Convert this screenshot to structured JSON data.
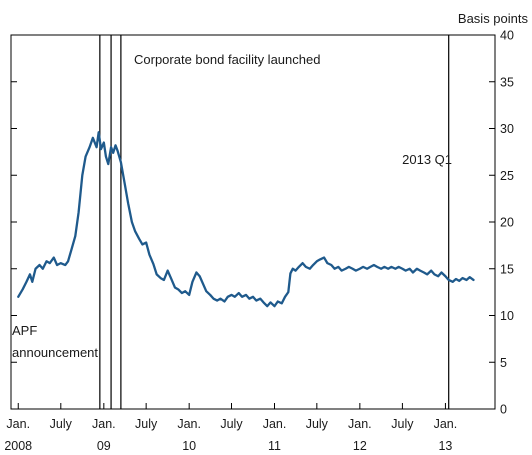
{
  "chart_data": {
    "type": "line",
    "unit_label": "Basis points",
    "ylim": [
      0,
      40
    ],
    "yticks": [
      0,
      5,
      10,
      15,
      20,
      25,
      30,
      35,
      40
    ],
    "xlim": [
      "2007-12-01",
      "2013-08-01"
    ],
    "x_ticks": [
      {
        "label": "Jan.",
        "date": "2008-01-01",
        "year": "2008"
      },
      {
        "label": "July",
        "date": "2008-07-01",
        "year": ""
      },
      {
        "label": "Jan.",
        "date": "2009-01-01",
        "year": "09"
      },
      {
        "label": "July",
        "date": "2009-07-01",
        "year": ""
      },
      {
        "label": "Jan.",
        "date": "2010-01-01",
        "year": "10"
      },
      {
        "label": "July",
        "date": "2010-07-01",
        "year": ""
      },
      {
        "label": "Jan.",
        "date": "2011-01-01",
        "year": "11"
      },
      {
        "label": "July",
        "date": "2011-07-01",
        "year": ""
      },
      {
        "label": "Jan.",
        "date": "2012-01-01",
        "year": "12"
      },
      {
        "label": "July",
        "date": "2012-07-01",
        "year": ""
      },
      {
        "label": "Jan.",
        "date": "2013-01-01",
        "year": "13"
      }
    ],
    "grid": false,
    "line_color": "#1f5a8c",
    "vlines": [
      {
        "date": "2008-12-15"
      },
      {
        "date": "2009-02-01"
      },
      {
        "date": "2009-03-15"
      },
      {
        "date": "2013-01-15"
      }
    ],
    "annotations": [
      {
        "id": "apf",
        "lines": [
          "APF",
          "announcement"
        ]
      },
      {
        "id": "cbf",
        "lines": [
          "Corporate bond facility launched"
        ]
      },
      {
        "id": "q1",
        "lines": [
          "2013 Q1"
        ]
      }
    ],
    "series": [
      {
        "values": [
          [
            "2008-01-01",
            12.0
          ],
          [
            "2008-01-20",
            12.8
          ],
          [
            "2008-02-05",
            13.6
          ],
          [
            "2008-02-20",
            14.4
          ],
          [
            "2008-03-01",
            13.6
          ],
          [
            "2008-03-15",
            15.0
          ],
          [
            "2008-04-01",
            15.4
          ],
          [
            "2008-04-15",
            15.0
          ],
          [
            "2008-05-01",
            15.8
          ],
          [
            "2008-05-15",
            15.6
          ],
          [
            "2008-06-01",
            16.2
          ],
          [
            "2008-06-15",
            15.4
          ],
          [
            "2008-07-01",
            15.6
          ],
          [
            "2008-07-20",
            15.4
          ],
          [
            "2008-08-01",
            15.8
          ],
          [
            "2008-08-15",
            17.0
          ],
          [
            "2008-09-01",
            18.5
          ],
          [
            "2008-09-15",
            21.0
          ],
          [
            "2008-10-01",
            25.0
          ],
          [
            "2008-10-15",
            27.0
          ],
          [
            "2008-11-01",
            28.0
          ],
          [
            "2008-11-15",
            29.0
          ],
          [
            "2008-12-01",
            28.0
          ],
          [
            "2008-12-10",
            29.6
          ],
          [
            "2008-12-20",
            27.8
          ],
          [
            "2009-01-01",
            28.5
          ],
          [
            "2009-01-10",
            27.0
          ],
          [
            "2009-01-20",
            26.2
          ],
          [
            "2009-02-01",
            28.0
          ],
          [
            "2009-02-10",
            27.4
          ],
          [
            "2009-02-20",
            28.2
          ],
          [
            "2009-03-01",
            27.6
          ],
          [
            "2009-03-15",
            26.4
          ],
          [
            "2009-04-01",
            24.0
          ],
          [
            "2009-04-15",
            22.0
          ],
          [
            "2009-05-01",
            20.0
          ],
          [
            "2009-05-15",
            19.0
          ],
          [
            "2009-06-01",
            18.2
          ],
          [
            "2009-06-15",
            17.6
          ],
          [
            "2009-07-01",
            17.8
          ],
          [
            "2009-07-15",
            16.5
          ],
          [
            "2009-08-01",
            15.5
          ],
          [
            "2009-08-15",
            14.4
          ],
          [
            "2009-09-01",
            14.0
          ],
          [
            "2009-09-15",
            13.8
          ],
          [
            "2009-10-01",
            14.8
          ],
          [
            "2009-10-15",
            14.0
          ],
          [
            "2009-11-01",
            13.0
          ],
          [
            "2009-11-15",
            12.8
          ],
          [
            "2009-12-01",
            12.4
          ],
          [
            "2009-12-15",
            12.6
          ],
          [
            "2010-01-01",
            12.2
          ],
          [
            "2010-01-15",
            13.6
          ],
          [
            "2010-02-01",
            14.6
          ],
          [
            "2010-02-15",
            14.2
          ],
          [
            "2010-03-01",
            13.4
          ],
          [
            "2010-03-15",
            12.6
          ],
          [
            "2010-04-01",
            12.2
          ],
          [
            "2010-04-15",
            11.8
          ],
          [
            "2010-05-01",
            11.6
          ],
          [
            "2010-05-15",
            11.8
          ],
          [
            "2010-06-01",
            11.5
          ],
          [
            "2010-06-15",
            12.0
          ],
          [
            "2010-07-01",
            12.2
          ],
          [
            "2010-07-15",
            12.0
          ],
          [
            "2010-08-01",
            12.4
          ],
          [
            "2010-08-15",
            12.0
          ],
          [
            "2010-09-01",
            12.2
          ],
          [
            "2010-09-15",
            11.8
          ],
          [
            "2010-10-01",
            12.0
          ],
          [
            "2010-10-15",
            11.6
          ],
          [
            "2010-11-01",
            11.8
          ],
          [
            "2010-11-15",
            11.4
          ],
          [
            "2010-12-01",
            11.0
          ],
          [
            "2010-12-15",
            11.4
          ],
          [
            "2011-01-01",
            11.0
          ],
          [
            "2011-01-15",
            11.5
          ],
          [
            "2011-02-01",
            11.3
          ],
          [
            "2011-02-15",
            12.0
          ],
          [
            "2011-03-01",
            12.5
          ],
          [
            "2011-03-10",
            14.5
          ],
          [
            "2011-03-20",
            15.0
          ],
          [
            "2011-04-01",
            14.8
          ],
          [
            "2011-04-15",
            15.2
          ],
          [
            "2011-05-01",
            15.6
          ],
          [
            "2011-05-15",
            15.2
          ],
          [
            "2011-06-01",
            15.0
          ],
          [
            "2011-06-15",
            15.4
          ],
          [
            "2011-07-01",
            15.8
          ],
          [
            "2011-07-15",
            16.0
          ],
          [
            "2011-08-01",
            16.2
          ],
          [
            "2011-08-15",
            15.6
          ],
          [
            "2011-09-01",
            15.4
          ],
          [
            "2011-09-15",
            15.0
          ],
          [
            "2011-10-01",
            15.2
          ],
          [
            "2011-10-15",
            14.8
          ],
          [
            "2011-11-01",
            15.0
          ],
          [
            "2011-11-15",
            15.2
          ],
          [
            "2011-12-01",
            15.0
          ],
          [
            "2011-12-15",
            14.8
          ],
          [
            "2012-01-01",
            15.0
          ],
          [
            "2012-01-15",
            15.2
          ],
          [
            "2012-02-01",
            15.0
          ],
          [
            "2012-02-15",
            15.2
          ],
          [
            "2012-03-01",
            15.4
          ],
          [
            "2012-03-15",
            15.2
          ],
          [
            "2012-04-01",
            15.0
          ],
          [
            "2012-04-15",
            15.2
          ],
          [
            "2012-05-01",
            15.0
          ],
          [
            "2012-05-15",
            15.2
          ],
          [
            "2012-06-01",
            15.0
          ],
          [
            "2012-06-15",
            15.2
          ],
          [
            "2012-07-01",
            15.0
          ],
          [
            "2012-07-15",
            14.8
          ],
          [
            "2012-08-01",
            15.0
          ],
          [
            "2012-08-15",
            14.6
          ],
          [
            "2012-09-01",
            15.0
          ],
          [
            "2012-09-15",
            14.8
          ],
          [
            "2012-10-01",
            14.6
          ],
          [
            "2012-10-15",
            14.4
          ],
          [
            "2012-11-01",
            14.8
          ],
          [
            "2012-11-15",
            14.4
          ],
          [
            "2012-12-01",
            14.2
          ],
          [
            "2012-12-15",
            14.6
          ],
          [
            "2013-01-01",
            14.2
          ],
          [
            "2013-01-15",
            13.8
          ],
          [
            "2013-02-01",
            13.6
          ],
          [
            "2013-02-15",
            13.9
          ],
          [
            "2013-03-01",
            13.7
          ],
          [
            "2013-03-15",
            14.0
          ],
          [
            "2013-04-01",
            13.8
          ],
          [
            "2013-04-15",
            14.1
          ],
          [
            "2013-05-01",
            13.8
          ]
        ]
      }
    ]
  }
}
